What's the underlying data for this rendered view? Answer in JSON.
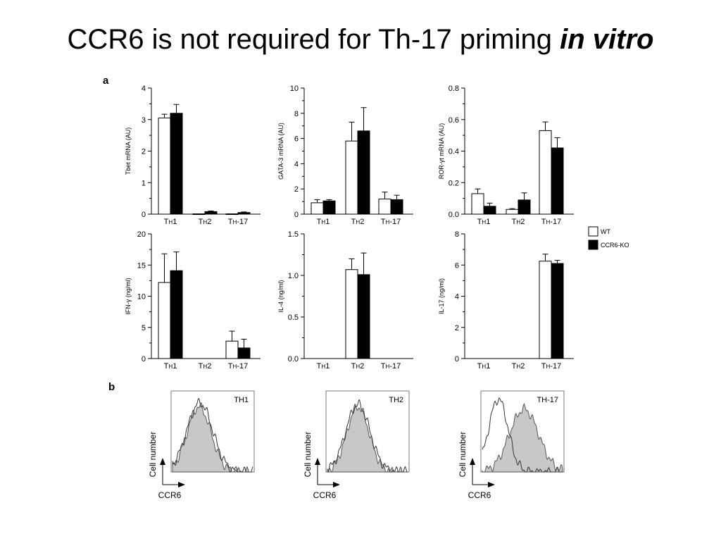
{
  "slide": {
    "title_main": "CCR6 is not required for Th-17 priming",
    "title_emph": "in vitro"
  },
  "panels": {
    "a_label": "a",
    "b_label": "b"
  },
  "legend": [
    {
      "name": "WT",
      "fill": "#ffffff"
    },
    {
      "name": "CCR6-KO",
      "fill": "#000000"
    }
  ],
  "colors": {
    "wt": "#ffffff",
    "ko": "#000000",
    "hist_fill": "#c8c8c8"
  },
  "chart_data": [
    {
      "type": "bar",
      "ylabel": "Tbet mRNA (AU)",
      "categories": [
        "TH1",
        "TH2",
        "TH-17"
      ],
      "ylim": [
        0,
        4
      ],
      "yticks": [
        0,
        1,
        2,
        3,
        4
      ],
      "ytick_labels": [
        "0",
        "1",
        "2",
        "3",
        "4"
      ],
      "series": [
        {
          "name": "WT",
          "values": [
            3.05,
            0.01,
            0.01
          ],
          "errors": [
            0.12,
            0.0,
            0.0
          ]
        },
        {
          "name": "CCR6-KO",
          "values": [
            3.2,
            0.08,
            0.05
          ],
          "errors": [
            0.28,
            0.02,
            0.02
          ]
        }
      ]
    },
    {
      "type": "bar",
      "ylabel": "GATA-3 mRNA (AU)",
      "categories": [
        "TH1",
        "TH2",
        "TH-17"
      ],
      "ylim": [
        0,
        10
      ],
      "yticks": [
        0,
        2,
        4,
        6,
        8,
        10
      ],
      "ytick_labels": [
        "0",
        "2",
        "4",
        "6",
        "8",
        "10"
      ],
      "series": [
        {
          "name": "WT",
          "values": [
            0.9,
            5.8,
            1.2
          ],
          "errors": [
            0.25,
            1.5,
            0.55
          ]
        },
        {
          "name": "CCR6-KO",
          "values": [
            1.05,
            6.6,
            1.15
          ],
          "errors": [
            0.1,
            1.85,
            0.35
          ]
        }
      ]
    },
    {
      "type": "bar",
      "ylabel": "ROR-γt mRNA (AU)",
      "categories": [
        "TH1",
        "TH2",
        "TH-17"
      ],
      "ylim": [
        0,
        0.8
      ],
      "yticks": [
        0,
        0.2,
        0.4,
        0.6,
        0.8
      ],
      "ytick_labels": [
        "0.0",
        "0.2",
        "0.4",
        "0.6",
        "0.8"
      ],
      "series": [
        {
          "name": "WT",
          "values": [
            0.13,
            0.03,
            0.53
          ],
          "errors": [
            0.03,
            0.005,
            0.055
          ]
        },
        {
          "name": "CCR6-KO",
          "values": [
            0.05,
            0.09,
            0.42
          ],
          "errors": [
            0.02,
            0.045,
            0.065
          ]
        }
      ]
    },
    {
      "type": "bar",
      "ylabel": "IFN-γ (ng/ml)",
      "categories": [
        "TH1",
        "TH2",
        "TH-17"
      ],
      "ylim": [
        0,
        20
      ],
      "yticks": [
        0,
        5,
        10,
        15,
        20
      ],
      "ytick_labels": [
        "0",
        "5",
        "10",
        "15",
        "20"
      ],
      "series": [
        {
          "name": "WT",
          "values": [
            12.2,
            0,
            2.8
          ],
          "errors": [
            4.6,
            0,
            1.6
          ]
        },
        {
          "name": "CCR6-KO",
          "values": [
            14.1,
            0,
            1.7
          ],
          "errors": [
            3.0,
            0,
            1.4
          ]
        }
      ]
    },
    {
      "type": "bar",
      "ylabel": "IL-4 (ng/ml)",
      "categories": [
        "TH1",
        "TH2",
        "TH-17"
      ],
      "ylim": [
        0,
        1.5
      ],
      "yticks": [
        0,
        0.5,
        1.0,
        1.5
      ],
      "ytick_labels": [
        "0.0",
        "0.5",
        "1.0",
        "1.5"
      ],
      "series": [
        {
          "name": "WT",
          "values": [
            0,
            1.07,
            0
          ],
          "errors": [
            0,
            0.13,
            0
          ]
        },
        {
          "name": "CCR6-KO",
          "values": [
            0,
            1.01,
            0
          ],
          "errors": [
            0,
            0.26,
            0
          ]
        }
      ]
    },
    {
      "type": "bar",
      "ylabel": "IL-17 (ng/ml)",
      "categories": [
        "TH1",
        "TH2",
        "TH-17"
      ],
      "ylim": [
        0,
        8
      ],
      "yticks": [
        0,
        2,
        4,
        6,
        8
      ],
      "ytick_labels": [
        "0",
        "2",
        "4",
        "6",
        "8"
      ],
      "series": [
        {
          "name": "WT",
          "values": [
            0,
            0,
            6.25
          ],
          "errors": [
            0,
            0,
            0.45
          ]
        },
        {
          "name": "CCR6-KO",
          "values": [
            0,
            0,
            6.1
          ],
          "errors": [
            0,
            0,
            0.2
          ]
        }
      ]
    }
  ],
  "histograms": [
    {
      "label": "TH1",
      "xlabel": "CCR6",
      "ylabel": "Cell number"
    },
    {
      "label": "TH2",
      "xlabel": "CCR6",
      "ylabel": "Cell number"
    },
    {
      "label": "TH-17",
      "xlabel": "CCR6",
      "ylabel": "Cell number"
    }
  ]
}
